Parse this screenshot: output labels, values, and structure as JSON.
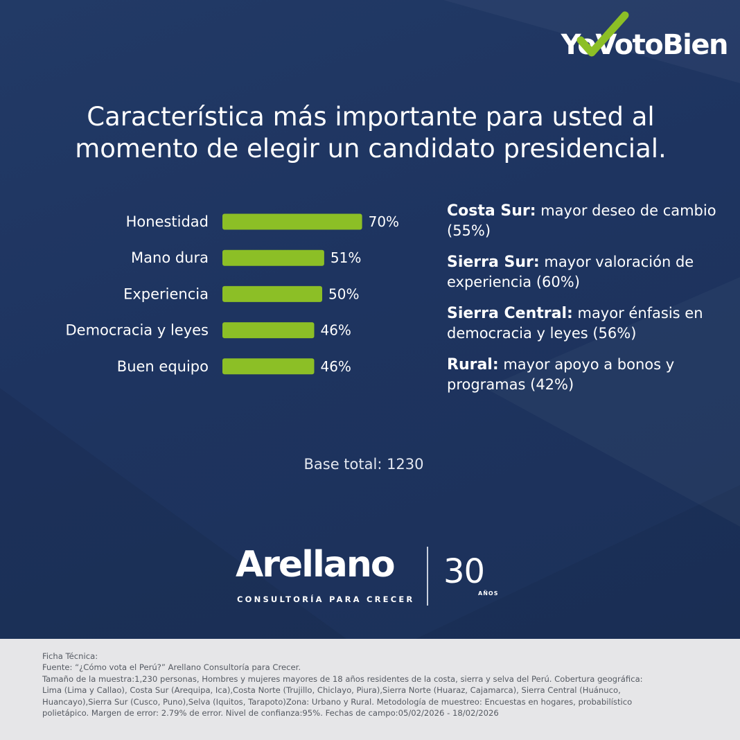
{
  "header": {
    "logo_text": "YoVotoBien",
    "title_lines": [
      "Característica más importante para usted al",
      "momento de elegir un candidato presidencial."
    ]
  },
  "chart_data": {
    "type": "bar",
    "orientation": "horizontal",
    "categories": [
      "Honestidad",
      "Mano dura",
      "Experiencia",
      "Democracia y leyes",
      "Buen equipo"
    ],
    "values": [
      70,
      51,
      50,
      46,
      46
    ],
    "value_labels": [
      "70%",
      "51%",
      "50%",
      "46%",
      "46%"
    ],
    "unit": "%",
    "xlim": [
      0,
      100
    ],
    "grid": false,
    "bar_color": "#8cbf26"
  },
  "notes": [
    {
      "region": "Costa Sur:",
      "text": "mayor deseo de cambio (55%)"
    },
    {
      "region": "Sierra Sur:",
      "text": "mayor valoración de experiencia (60%)"
    },
    {
      "region": "Sierra Central:",
      "text": "mayor énfasis en democracia y leyes (56%)"
    },
    {
      "region": "Rural:",
      "text": "mayor apoyo a bonos y programas (42%)"
    }
  ],
  "base_total": "Base total: 1230",
  "brand": {
    "name": "Arellano",
    "tagline": "CONSULTORÍA PARA CRECER",
    "anniversary_number": "30",
    "anniversary_label": "AÑOS"
  },
  "footer": {
    "lines": [
      "Ficha Técnica:",
      "Fuente: “¿Cómo vota el Perú?” Arellano Consultoría para Crecer.",
      "Tamaño de la muestra:1,230 personas, Hombres y mujeres mayores de 18 años residentes de la costa, sierra y selva del Perú. Cobertura geográfica:",
      "Lima (Lima y Callao), Costa Sur (Arequipa, Ica),Costa Norte (Trujillo, Chiclayo, Piura),Sierra Norte (Huaraz, Cajamarca), Sierra Central (Huánuco,",
      "Huancayo),Sierra Sur (Cusco, Puno),Selva (Iquitos, Tarapoto)Zona: Urbano y Rural. Metodología de muestreo: Encuestas en hogares, probabilístico",
      "polietápico. Margen de error: 2.79% de error. Nivel de confianza:95%. Fechas de campo:05/02/2026 - 18/02/2026"
    ]
  },
  "colors": {
    "background": "#1e335c",
    "accent_green": "#8cbf26",
    "footer_bg": "#e6e6e8"
  }
}
